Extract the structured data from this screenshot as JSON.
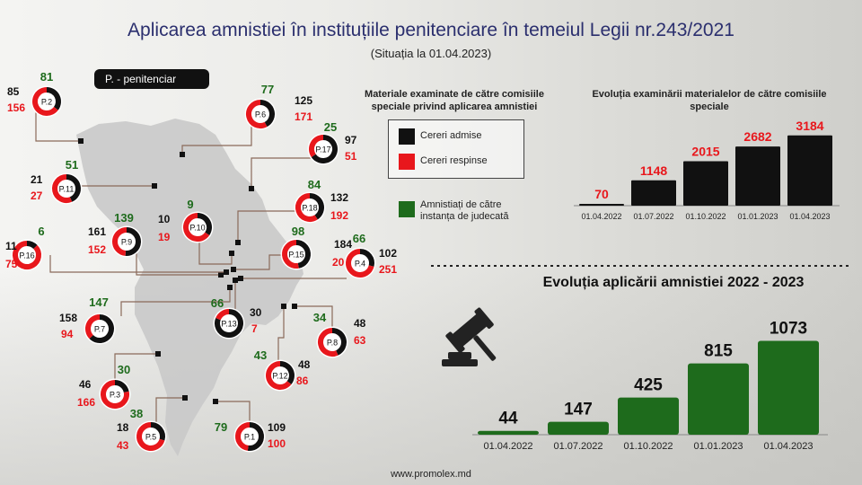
{
  "title": "Aplicarea amnistiei în instituțiile penitenciare  în temeiul Legii nr.243/2021",
  "subtitle": "(Situația la 01.04.2023)",
  "legend_pill": "P. - penitenciar",
  "footer": "www.promolex.md",
  "colors": {
    "admitted": "#111111",
    "rejected": "#e8171c",
    "amnesty": "#1e6b1c",
    "title": "#2b2f6e"
  },
  "legend": {
    "title": "Materiale examinate de către comisiile speciale privind aplicarea amnistiei",
    "admitted": "Cereri admise",
    "rejected": "Cereri respinse",
    "amnesty": "Amnistiați de către instanța de judecată"
  },
  "chart_data": [
    {
      "type": "donut-map",
      "series": [
        {
          "name": "Cereri admise"
        },
        {
          "name": "Cereri respinse"
        },
        {
          "name": "Amnistiați de către instanța de judecată"
        }
      ],
      "institutions": [
        {
          "label": "P.2",
          "admitted": 85,
          "rejected": 156,
          "amnesty": 81
        },
        {
          "label": "P.6",
          "admitted": 125,
          "rejected": 171,
          "amnesty": 77
        },
        {
          "label": "P.17",
          "admitted": 97,
          "rejected": 51,
          "amnesty": 25
        },
        {
          "label": "P.11",
          "admitted": 21,
          "rejected": 27,
          "amnesty": 51
        },
        {
          "label": "P.18",
          "admitted": 132,
          "rejected": 192,
          "amnesty": 84
        },
        {
          "label": "P.9",
          "admitted": 161,
          "rejected": 152,
          "amnesty": 139
        },
        {
          "label": "P.10",
          "admitted": 10,
          "rejected": 19,
          "amnesty": 9
        },
        {
          "label": "P.16",
          "admitted": 11,
          "rejected": 75,
          "amnesty": 6
        },
        {
          "label": "P.15",
          "admitted": 184,
          "rejected": 206,
          "amnesty": 98
        },
        {
          "label": "P.4",
          "admitted": 102,
          "rejected": 251,
          "amnesty": 66
        },
        {
          "label": "P.7",
          "admitted": 158,
          "rejected": 94,
          "amnesty": 147
        },
        {
          "label": "P.13",
          "admitted": 30,
          "rejected": 7,
          "amnesty": 66
        },
        {
          "label": "P.8",
          "admitted": 48,
          "rejected": 63,
          "amnesty": 34
        },
        {
          "label": "P.12",
          "admitted": 48,
          "rejected": 86,
          "amnesty": 43
        },
        {
          "label": "P.3",
          "admitted": 46,
          "rejected": 166,
          "amnesty": 30
        },
        {
          "label": "P.5",
          "admitted": 18,
          "rejected": 43,
          "amnesty": 38
        },
        {
          "label": "P.1",
          "admitted": 109,
          "rejected": 100,
          "amnesty": 79
        }
      ]
    },
    {
      "type": "bar",
      "title": "Evoluția examinării materialelor de către comisiile speciale",
      "categories": [
        "01.04.2022",
        "01.07.2022",
        "01.10.2022",
        "01.01.2023",
        "01.04.2023"
      ],
      "values": [
        70,
        1148,
        2015,
        2682,
        3184
      ],
      "ylim": [
        0,
        3500
      ]
    },
    {
      "type": "bar",
      "title": "Evoluția aplicării amnistiei 2022 - 2023",
      "categories": [
        "01.04.2022",
        "01.07.2022",
        "01.10.2022",
        "01.01.2023",
        "01.04.2023"
      ],
      "values": [
        44,
        147,
        425,
        815,
        1073
      ],
      "ylim": [
        0,
        1150
      ]
    }
  ]
}
